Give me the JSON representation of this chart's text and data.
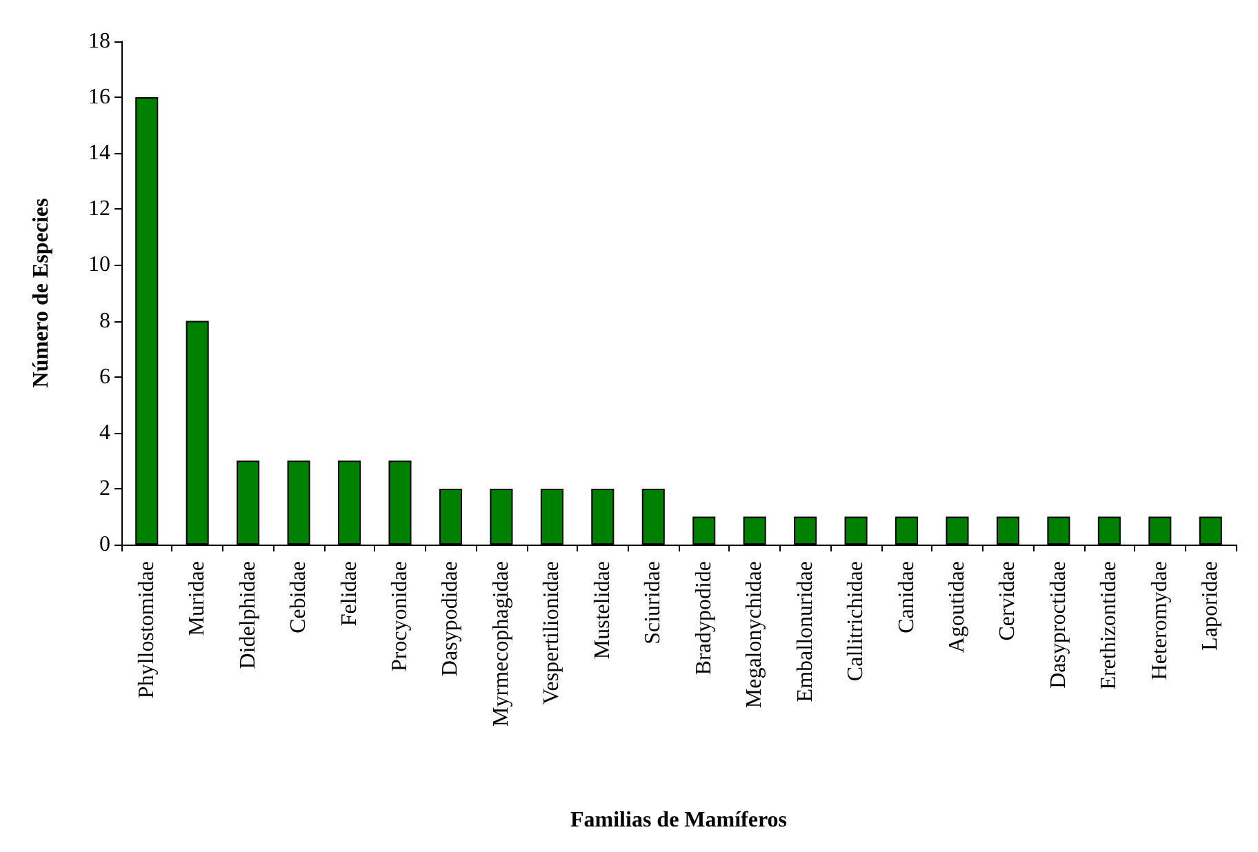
{
  "chart_data": {
    "type": "bar",
    "xlabel": "Familias de Mamíferos",
    "ylabel": "Número de Especies",
    "categories": [
      "Phyllostomidae",
      "Muridae",
      "Didelphidae",
      "Cebidae",
      "Felidae",
      "Procyonidae",
      "Dasypodidae",
      "Myrmecophagidae",
      "Vespertilionidae",
      "Mustelidae",
      "Sciuridae",
      "Bradypodide",
      "Megalonychidae",
      "Emballonuridae",
      "Callitrichidae",
      "Canidae",
      "Agoutidae",
      "Cervidae",
      "Dasyproctidae",
      "Erethizontidae",
      "Heteromydae",
      "Laporidae"
    ],
    "values": [
      16,
      8,
      3,
      3,
      3,
      3,
      2,
      2,
      2,
      2,
      2,
      1,
      1,
      1,
      1,
      1,
      1,
      1,
      1,
      1,
      1,
      1
    ],
    "color": "#008000",
    "ylim": [
      0,
      18
    ],
    "yticks": [
      0,
      2,
      4,
      6,
      8,
      10,
      12,
      14,
      16,
      18
    ],
    "grid": false
  }
}
